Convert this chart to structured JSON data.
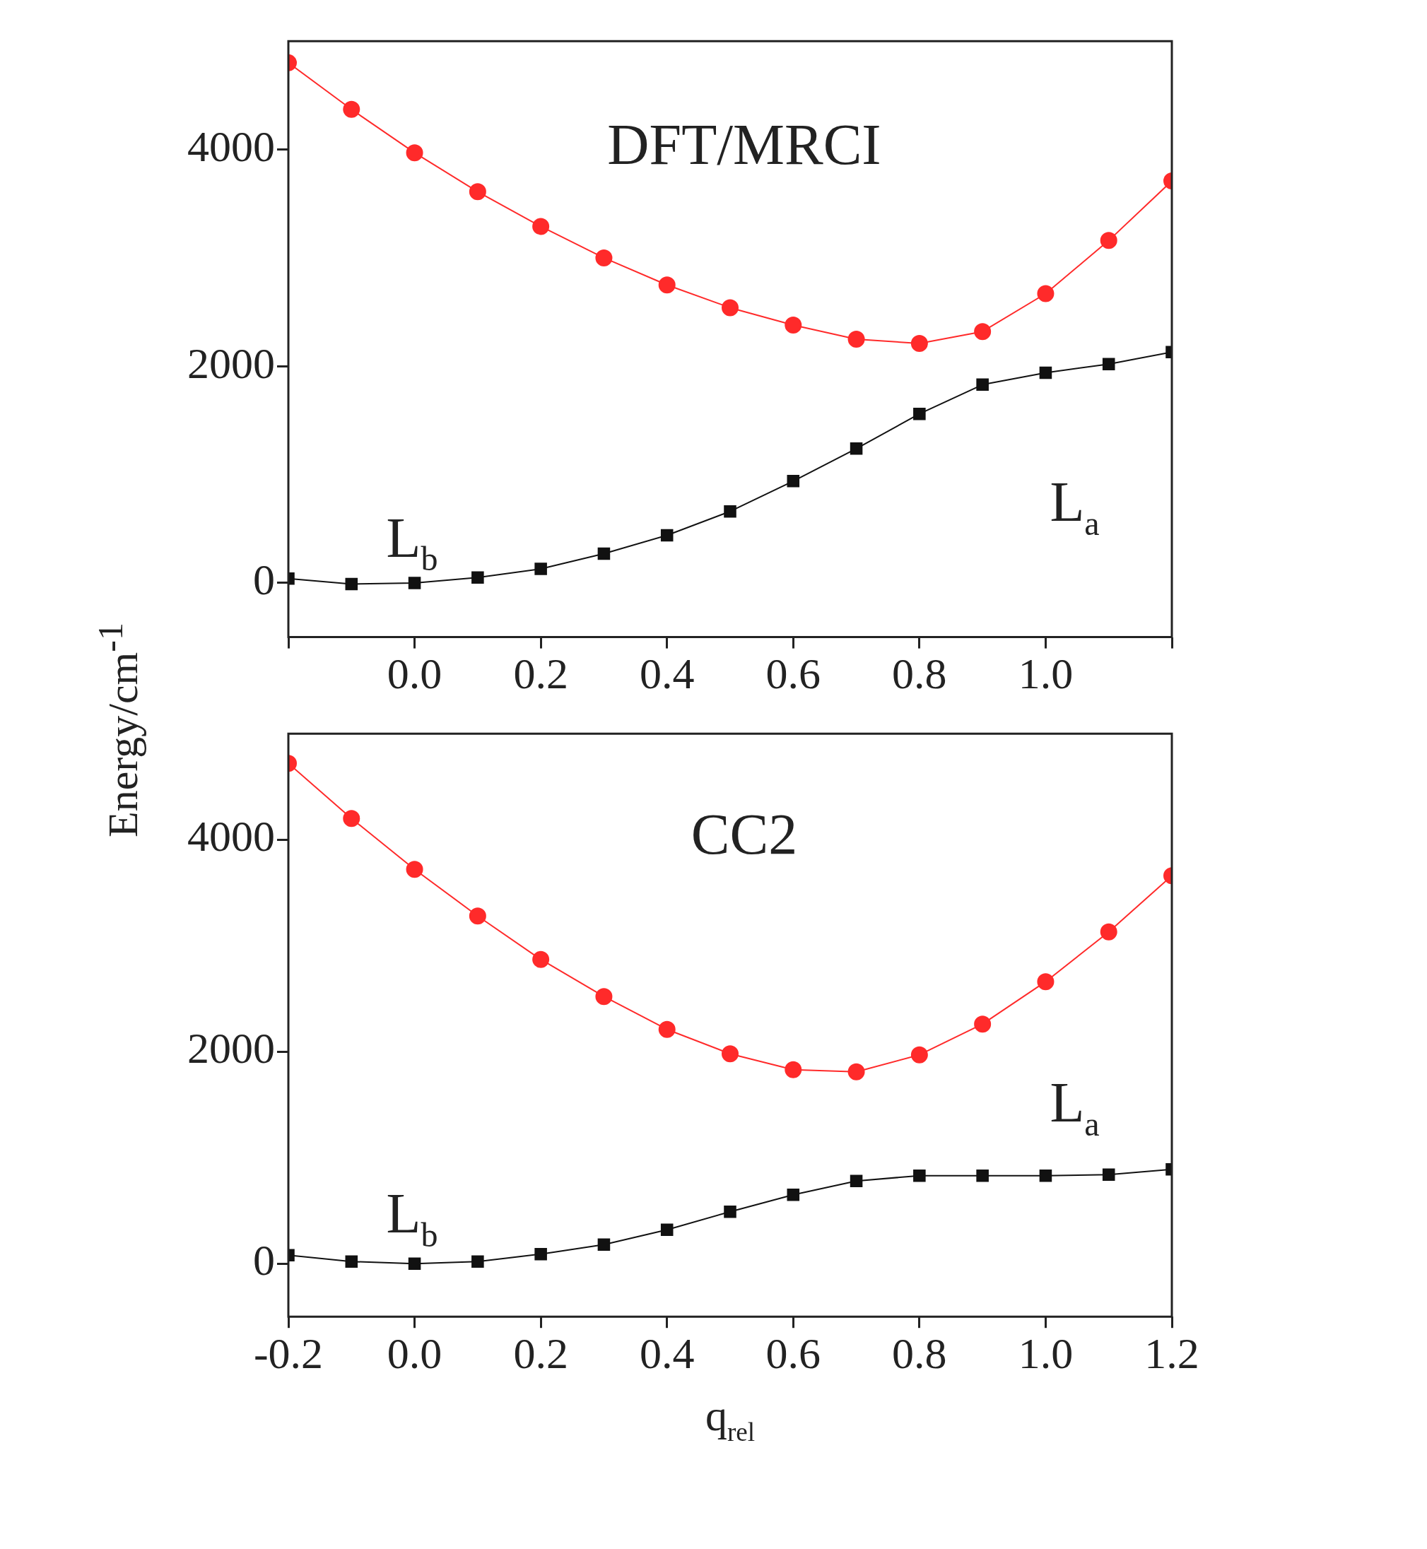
{
  "chart_data": [
    {
      "type": "line",
      "title": "DFT/MRCI",
      "ylabel": "Energy/cm$^{-1}$",
      "x": [
        -0.2,
        -0.1,
        0.0,
        0.1,
        0.2,
        0.3,
        0.4,
        0.5,
        0.6,
        0.7,
        0.8,
        0.9,
        1.0,
        1.1,
        1.2
      ],
      "series": [
        {
          "color": "#ff2a2a",
          "marker": "circle",
          "values": [
            4800,
            4370,
            3970,
            3610,
            3290,
            3000,
            2750,
            2540,
            2380,
            2250,
            2210,
            2320,
            2670,
            3160,
            3710
          ]
        },
        {
          "color": "#111111",
          "marker": "square",
          "values": [
            40,
            -10,
            0,
            50,
            130,
            270,
            440,
            660,
            940,
            1240,
            1560,
            1830,
            1940,
            2020,
            2130
          ]
        }
      ],
      "xlim": [
        -0.2,
        1.2
      ],
      "xticks": [
        {
          "value": -0.2,
          "label": null
        },
        {
          "value": 0,
          "label": "0.0"
        },
        0.2,
        0.4,
        0.6,
        0.8,
        {
          "value": 1,
          "label": "1.0"
        },
        {
          "value": 1.2,
          "label": null
        }
      ],
      "ylim": [
        -500,
        5000
      ],
      "yticks": [
        0,
        2000,
        4000
      ],
      "grid": false,
      "legend": false,
      "annotations": [
        "L$_{b}$",
        "L$_{a}$"
      ]
    },
    {
      "type": "line",
      "title": "CC2",
      "xlabel": "q$_{rel}$",
      "x": [
        -0.2,
        -0.1,
        0.0,
        0.1,
        0.2,
        0.3,
        0.4,
        0.5,
        0.6,
        0.7,
        0.8,
        0.9,
        1.0,
        1.1,
        1.2
      ],
      "series": [
        {
          "color": "#ff2a2a",
          "marker": "circle",
          "values": [
            4720,
            4200,
            3720,
            3280,
            2870,
            2520,
            2210,
            1980,
            1830,
            1810,
            1970,
            2260,
            2660,
            3130,
            3660
          ]
        },
        {
          "color": "#111111",
          "marker": "square",
          "values": [
            80,
            20,
            0,
            20,
            90,
            180,
            320,
            490,
            650,
            780,
            830,
            830,
            830,
            840,
            890
          ]
        }
      ],
      "xlim": [
        -0.2,
        1.2
      ],
      "xticks": [
        -0.2,
        {
          "value": 0,
          "label": "0.0"
        },
        0.2,
        0.4,
        0.6,
        0.8,
        {
          "value": 1,
          "label": "1.0"
        },
        1.2
      ],
      "ylim": [
        -500,
        5000
      ],
      "yticks": [
        0,
        2000,
        4000
      ],
      "grid": false,
      "legend": false,
      "annotations": [
        "L$_{b}$",
        "L$_{a}$"
      ]
    }
  ]
}
